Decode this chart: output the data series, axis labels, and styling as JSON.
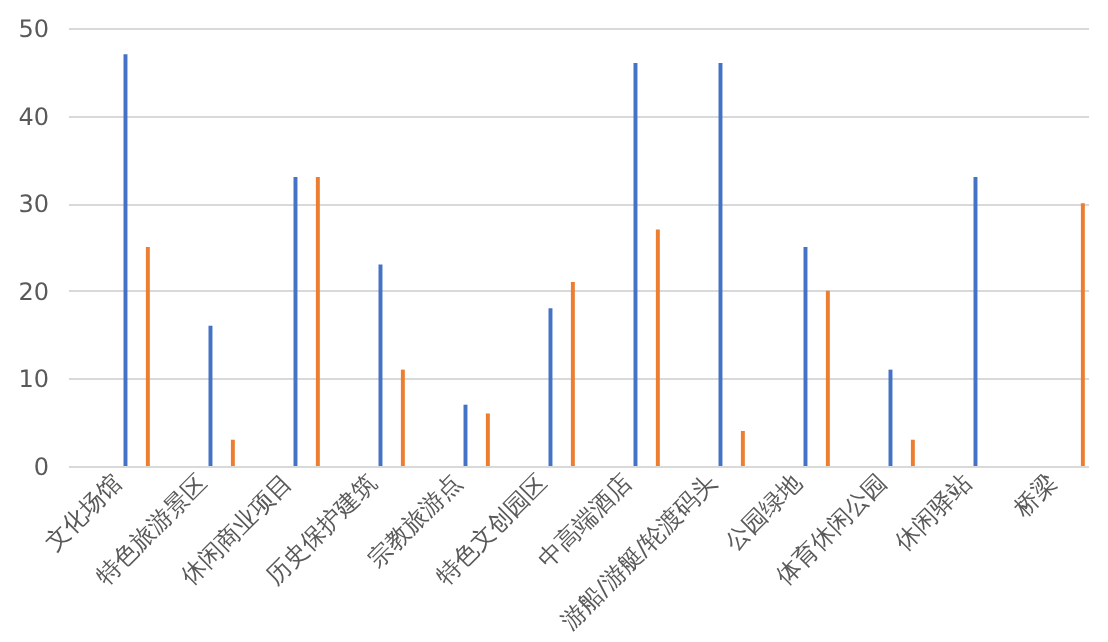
{
  "chart_data": {
    "type": "bar",
    "categories": [
      "文化场馆",
      "特色旅游景区",
      "休闲商业项目",
      "历史保护建筑",
      "宗教旅游点",
      "特色文创园区",
      "中高端酒店",
      "游船/游艇/轮渡码头",
      "公园绿地",
      "体育休闲公园",
      "休闲驿站",
      "桥梁"
    ],
    "series": [
      {
        "color": "#4472c4",
        "values": [
          47,
          16,
          33,
          23,
          7,
          18,
          46,
          46,
          25,
          11,
          33,
          null
        ]
      },
      {
        "color": "#ed7d31",
        "values": [
          25,
          3,
          33,
          11,
          6,
          21,
          27,
          4,
          20,
          3,
          null,
          30
        ]
      }
    ],
    "ylim": [
      0,
      50
    ],
    "yticks": [
      0,
      10,
      20,
      30,
      40,
      50
    ],
    "grid": "y",
    "legend": false
  }
}
